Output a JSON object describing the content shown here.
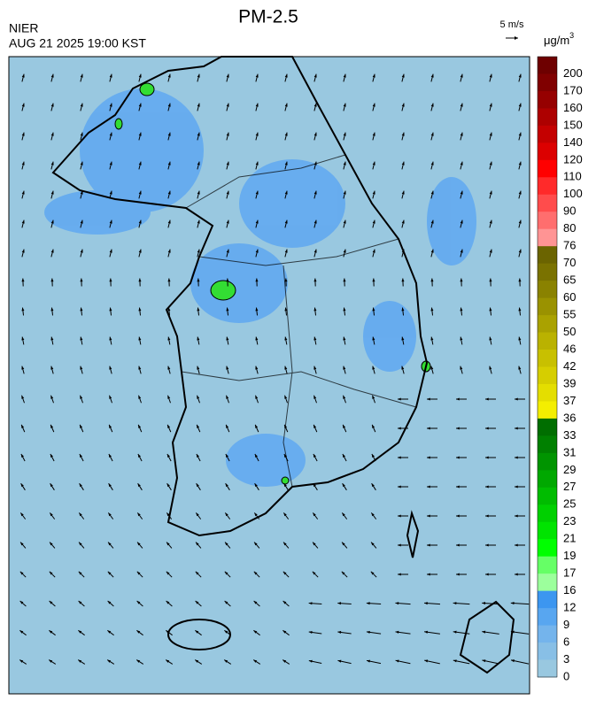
{
  "header": {
    "title": "PM-2.5",
    "agency": "NIER",
    "datetime": "AUG 21 2025 19:00 KST",
    "wind_scale": "5 m/s"
  },
  "legend": {
    "unit": {
      "text": "μg/m",
      "superscript": "3"
    },
    "labels": [
      "200",
      "170",
      "160",
      "150",
      "140",
      "120",
      "110",
      "100",
      "90",
      "80",
      "76",
      "70",
      "65",
      "60",
      "55",
      "50",
      "46",
      "42",
      "39",
      "37",
      "36",
      "33",
      "31",
      "29",
      "27",
      "25",
      "23",
      "21",
      "19",
      "17",
      "16",
      "12",
      "9",
      "6",
      "3",
      "0"
    ],
    "colors": [
      "#6e0000",
      "#800000",
      "#960000",
      "#ad0000",
      "#c40000",
      "#dc0000",
      "#ff0000",
      "#ff2a2a",
      "#ff4c4c",
      "#ff6e6e",
      "#ff9494",
      "#6b6400",
      "#7a7200",
      "#8a8200",
      "#9a9200",
      "#aaa200",
      "#bab200",
      "#c8c000",
      "#d6ce00",
      "#e4de00",
      "#f4ee00",
      "#006e00",
      "#008000",
      "#009400",
      "#00a800",
      "#00bc00",
      "#00d000",
      "#00e400",
      "#00ff00",
      "#66ff66",
      "#9cff9c",
      "#3c96f0",
      "#58a6f0",
      "#74b4ec",
      "#88bfe6",
      "#99c8e0"
    ]
  }
}
